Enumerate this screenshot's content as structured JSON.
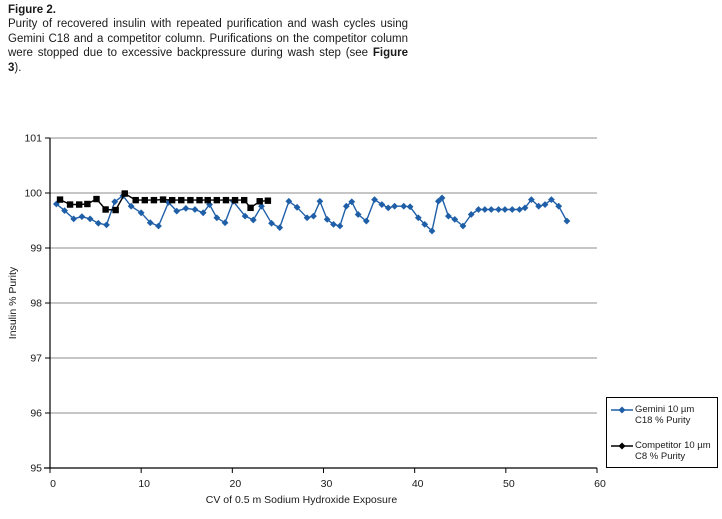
{
  "figure": {
    "label": "Figure 2.",
    "caption_main": "Purity of recovered insulin with repeated purification and wash cycles using Gemini C18 and a competitor column. Purifications on the competitor column were stopped due to excessive backpressure during wash step (see ",
    "caption_ref": "Figure 3",
    "caption_end": ")."
  },
  "chart_data": {
    "type": "line",
    "title": "",
    "xlabel": "CV of 0.5 m Sodium Hydroxide Exposure",
    "ylabel": "Insulin % Purity",
    "xlim": [
      0,
      60
    ],
    "ylim": [
      95,
      101
    ],
    "x_ticks": [
      0,
      10,
      20,
      30,
      40,
      50,
      60
    ],
    "y_ticks": [
      95,
      96,
      97,
      98,
      99,
      100,
      101
    ],
    "grid": "horizontal gray lines at each y tick, no vertical gridlines",
    "legend_position": "outside right, bottom",
    "series": [
      {
        "name": "Gemini 10 µm C18 % Purity",
        "legend_line1": "Gemini 10 µm",
        "legend_line2": "C18 % Purity",
        "color": "#1F5FA8",
        "marker": "diamond",
        "points": [
          [
            0.7,
            99.8
          ],
          [
            1.6,
            99.68
          ],
          [
            2.6,
            99.53
          ],
          [
            3.5,
            99.57
          ],
          [
            4.4,
            99.53
          ],
          [
            5.3,
            99.45
          ],
          [
            6.2,
            99.42
          ],
          [
            7.1,
            99.84
          ],
          [
            8.0,
            99.95
          ],
          [
            8.9,
            99.76
          ],
          [
            10.0,
            99.64
          ],
          [
            11.0,
            99.46
          ],
          [
            11.9,
            99.4
          ],
          [
            13.0,
            99.83
          ],
          [
            13.9,
            99.67
          ],
          [
            14.9,
            99.72
          ],
          [
            15.9,
            99.7
          ],
          [
            16.8,
            99.64
          ],
          [
            17.5,
            99.79
          ],
          [
            18.3,
            99.55
          ],
          [
            19.2,
            99.46
          ],
          [
            20.1,
            99.85
          ],
          [
            21.4,
            99.58
          ],
          [
            22.3,
            99.51
          ],
          [
            23.2,
            99.76
          ],
          [
            24.3,
            99.45
          ],
          [
            25.2,
            99.37
          ],
          [
            26.2,
            99.85
          ],
          [
            27.1,
            99.74
          ],
          [
            28.2,
            99.55
          ],
          [
            28.9,
            99.58
          ],
          [
            29.6,
            99.85
          ],
          [
            30.4,
            99.52
          ],
          [
            31.1,
            99.43
          ],
          [
            31.8,
            99.4
          ],
          [
            32.5,
            99.76
          ],
          [
            33.1,
            99.84
          ],
          [
            33.8,
            99.61
          ],
          [
            34.7,
            99.49
          ],
          [
            35.6,
            99.88
          ],
          [
            36.4,
            99.79
          ],
          [
            37.1,
            99.73
          ],
          [
            37.8,
            99.76
          ],
          [
            38.8,
            99.76
          ],
          [
            39.5,
            99.75
          ],
          [
            40.4,
            99.55
          ],
          [
            41.1,
            99.43
          ],
          [
            41.9,
            99.31
          ],
          [
            42.6,
            99.85
          ],
          [
            43.0,
            99.91
          ],
          [
            43.7,
            99.58
          ],
          [
            44.4,
            99.52
          ],
          [
            45.3,
            99.4
          ],
          [
            46.2,
            99.61
          ],
          [
            47.0,
            99.7
          ],
          [
            47.7,
            99.7
          ],
          [
            48.4,
            99.7
          ],
          [
            49.2,
            99.7
          ],
          [
            49.9,
            99.7
          ],
          [
            50.7,
            99.7
          ],
          [
            51.5,
            99.7
          ],
          [
            52.1,
            99.73
          ],
          [
            52.8,
            99.88
          ],
          [
            53.6,
            99.76
          ],
          [
            54.3,
            99.79
          ],
          [
            55.0,
            99.88
          ],
          [
            55.8,
            99.76
          ],
          [
            56.7,
            99.49
          ]
        ]
      },
      {
        "name": "Competitor 10 µm C8 % Purity",
        "legend_line1": "Competitor 10 µm",
        "legend_line2": "C8 % Purity",
        "color": "#000000",
        "marker": "square",
        "points": [
          [
            1.1,
            99.88
          ],
          [
            2.2,
            99.79
          ],
          [
            3.2,
            99.79
          ],
          [
            4.1,
            99.8
          ],
          [
            5.1,
            99.89
          ],
          [
            6.1,
            99.7
          ],
          [
            7.2,
            99.69
          ],
          [
            8.2,
            99.99
          ],
          [
            9.4,
            99.87
          ],
          [
            10.4,
            99.87
          ],
          [
            11.4,
            99.87
          ],
          [
            12.4,
            99.88
          ],
          [
            13.4,
            99.87
          ],
          [
            14.4,
            99.87
          ],
          [
            15.4,
            99.87
          ],
          [
            16.4,
            99.87
          ],
          [
            17.3,
            99.87
          ],
          [
            18.3,
            99.87
          ],
          [
            19.3,
            99.87
          ],
          [
            20.3,
            99.87
          ],
          [
            21.3,
            99.87
          ],
          [
            22.0,
            99.73
          ],
          [
            23.0,
            99.85
          ],
          [
            23.9,
            99.86
          ]
        ]
      }
    ]
  },
  "colors": {
    "gemini_blue": "#1F5FA8",
    "competitor_black": "#000000",
    "gridline_gray": "#8c8c8c",
    "axis_black": "#000000",
    "background": "#ffffff"
  }
}
